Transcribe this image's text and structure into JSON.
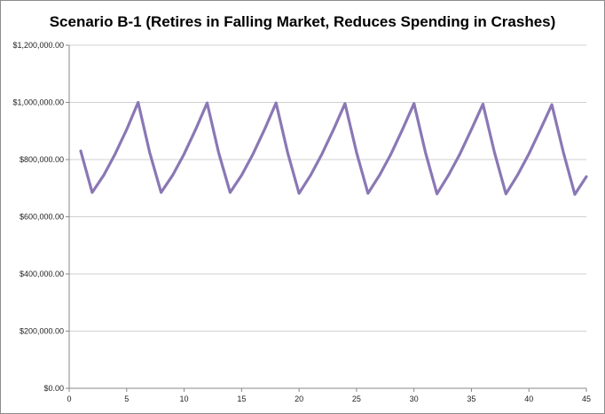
{
  "chart_data": {
    "type": "line",
    "title": "Scenario B-1 (Retires in Falling Market, Reduces Spending in Crashes)",
    "xlabel": "",
    "ylabel": "",
    "xlim": [
      0,
      45
    ],
    "ylim": [
      0,
      1200000
    ],
    "x_ticks": [
      "0",
      "5",
      "10",
      "15",
      "20",
      "25",
      "30",
      "35",
      "40",
      "45"
    ],
    "x_tick_values": [
      0,
      5,
      10,
      15,
      20,
      25,
      30,
      35,
      40,
      45
    ],
    "y_ticks": [
      "$0.00",
      "$200,000.00",
      "$400,000.00",
      "$600,000.00",
      "$800,000.00",
      "$1,000,000.00",
      "$1,200,000.00"
    ],
    "y_tick_values": [
      0,
      200000,
      400000,
      600000,
      800000,
      1000000,
      1200000
    ],
    "grid": "horizontal",
    "legend": "none",
    "line_color": "#8b77b5",
    "series": [
      {
        "x": [
          1,
          2,
          3,
          4,
          5,
          6,
          7,
          8,
          9,
          10,
          11,
          12,
          13,
          14,
          15,
          16,
          17,
          18,
          19,
          20,
          21,
          22,
          23,
          24,
          25,
          26,
          27,
          28,
          29,
          30,
          31,
          32,
          33,
          34,
          35,
          36,
          37,
          38,
          39,
          40,
          41,
          42,
          43,
          44,
          45
        ],
        "values": [
          830000,
          685000,
          745000,
          820000,
          905000,
          1000000,
          825000,
          685000,
          745000,
          820000,
          905000,
          998000,
          825000,
          685000,
          745000,
          820000,
          905000,
          998000,
          825000,
          682000,
          745000,
          820000,
          905000,
          996000,
          825000,
          682000,
          745000,
          820000,
          905000,
          996000,
          825000,
          680000,
          745000,
          820000,
          905000,
          994000,
          825000,
          680000,
          745000,
          820000,
          905000,
          992000,
          825000,
          678000,
          740000
        ]
      }
    ]
  }
}
